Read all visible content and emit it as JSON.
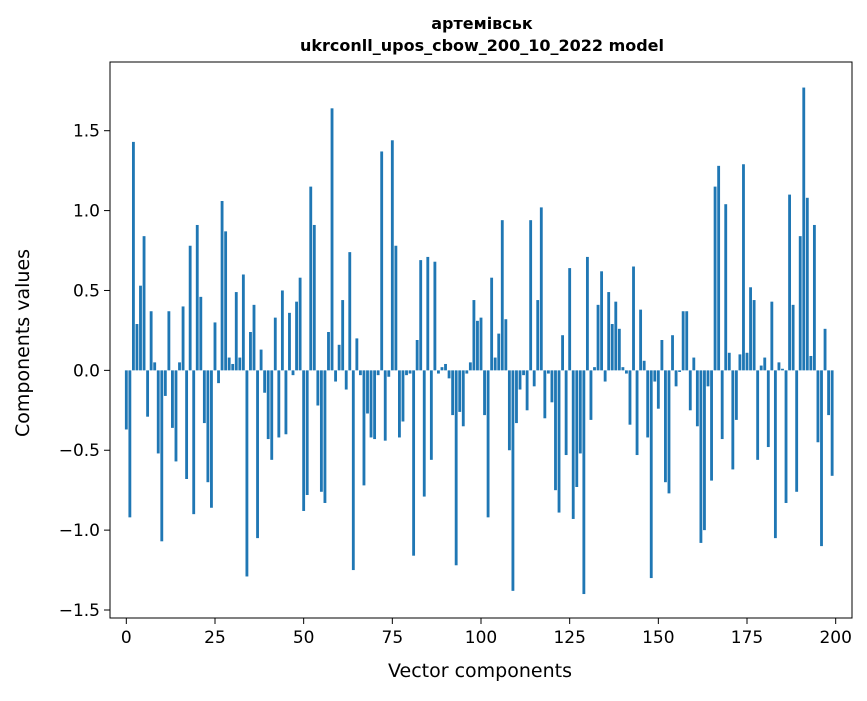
{
  "chart_data": {
    "type": "bar",
    "title": "артемівськ",
    "subtitle": "ukrconll_upos_cbow_200_10_2022 model",
    "xlabel": "Vector components",
    "ylabel": "Components values",
    "xlim": [
      -4.6,
      204.6
    ],
    "ylim": [
      -1.55,
      1.93
    ],
    "x_ticks": [
      0,
      25,
      50,
      75,
      100,
      125,
      150,
      175,
      200
    ],
    "x_tick_labels": [
      "0",
      "25",
      "50",
      "75",
      "100",
      "125",
      "150",
      "175",
      "200"
    ],
    "y_ticks": [
      -1.5,
      -1.0,
      -0.5,
      0.0,
      0.5,
      1.0,
      1.5
    ],
    "y_tick_labels": [
      "−1.5",
      "−1.0",
      "−0.5",
      "0.0",
      "0.5",
      "1.0",
      "1.5"
    ],
    "bar_color": "#1f77b4",
    "grid": false,
    "legend": "none",
    "x": [
      0,
      1,
      2,
      3,
      4,
      5,
      6,
      7,
      8,
      9,
      10,
      11,
      12,
      13,
      14,
      15,
      16,
      17,
      18,
      19,
      20,
      21,
      22,
      23,
      24,
      25,
      26,
      27,
      28,
      29,
      30,
      31,
      32,
      33,
      34,
      35,
      36,
      37,
      38,
      39,
      40,
      41,
      42,
      43,
      44,
      45,
      46,
      47,
      48,
      49,
      50,
      51,
      52,
      53,
      54,
      55,
      56,
      57,
      58,
      59,
      60,
      61,
      62,
      63,
      64,
      65,
      66,
      67,
      68,
      69,
      70,
      71,
      72,
      73,
      74,
      75,
      76,
      77,
      78,
      79,
      80,
      81,
      82,
      83,
      84,
      85,
      86,
      87,
      88,
      89,
      90,
      91,
      92,
      93,
      94,
      95,
      96,
      97,
      98,
      99,
      100,
      101,
      102,
      103,
      104,
      105,
      106,
      107,
      108,
      109,
      110,
      111,
      112,
      113,
      114,
      115,
      116,
      117,
      118,
      119,
      120,
      121,
      122,
      123,
      124,
      125,
      126,
      127,
      128,
      129,
      130,
      131,
      132,
      133,
      134,
      135,
      136,
      137,
      138,
      139,
      140,
      141,
      142,
      143,
      144,
      145,
      146,
      147,
      148,
      149,
      150,
      151,
      152,
      153,
      154,
      155,
      156,
      157,
      158,
      159,
      160,
      161,
      162,
      163,
      164,
      165,
      166,
      167,
      168,
      169,
      170,
      171,
      172,
      173,
      174,
      175,
      176,
      177,
      178,
      179,
      180,
      181,
      182,
      183,
      184,
      185,
      186,
      187,
      188,
      189,
      190,
      191,
      192,
      193,
      194,
      195,
      196,
      197,
      198,
      199
    ],
    "values": [
      -0.37,
      -0.92,
      1.43,
      0.29,
      0.53,
      0.84,
      -0.29,
      0.37,
      0.05,
      -0.52,
      -1.07,
      -0.16,
      0.37,
      -0.36,
      -0.57,
      0.05,
      0.4,
      -0.68,
      0.78,
      -0.9,
      0.91,
      0.46,
      -0.33,
      -0.7,
      -0.86,
      0.3,
      -0.08,
      1.06,
      0.87,
      0.08,
      0.04,
      0.49,
      0.08,
      0.6,
      -1.29,
      0.24,
      0.41,
      -1.05,
      0.13,
      -0.14,
      -0.43,
      -0.56,
      0.33,
      -0.42,
      0.5,
      -0.4,
      0.36,
      -0.03,
      0.43,
      0.58,
      -0.88,
      -0.78,
      1.15,
      0.91,
      -0.22,
      -0.76,
      -0.83,
      0.24,
      1.64,
      -0.07,
      0.16,
      0.44,
      -0.12,
      0.74,
      -1.25,
      0.2,
      -0.03,
      -0.72,
      -0.27,
      -0.42,
      -0.43,
      -0.03,
      1.37,
      -0.44,
      -0.04,
      1.44,
      0.78,
      -0.42,
      -0.32,
      -0.03,
      -0.02,
      -1.16,
      0.19,
      0.69,
      -0.79,
      0.71,
      -0.56,
      0.68,
      -0.02,
      0.02,
      0.04,
      -0.05,
      -0.28,
      -1.22,
      -0.26,
      -0.35,
      -0.02,
      0.05,
      0.44,
      0.31,
      0.33,
      -0.28,
      -0.92,
      0.58,
      0.08,
      0.23,
      0.94,
      0.32,
      -0.5,
      -1.38,
      -0.33,
      -0.12,
      -0.03,
      -0.25,
      0.94,
      -0.1,
      0.44,
      1.02,
      -0.3,
      -0.02,
      -0.2,
      -0.75,
      -0.89,
      0.22,
      -0.53,
      0.64,
      -0.93,
      -0.73,
      -0.52,
      -1.4,
      0.71,
      -0.31,
      0.02,
      0.41,
      0.62,
      -0.07,
      0.49,
      0.29,
      0.43,
      0.26,
      0.02,
      -0.02,
      -0.34,
      0.65,
      -0.53,
      0.38,
      0.06,
      -0.42,
      -1.3,
      -0.07,
      -0.24,
      0.19,
      -0.7,
      -0.77,
      0.22,
      -0.1,
      -0.01,
      0.37,
      0.37,
      -0.25,
      0.08,
      -0.35,
      -1.08,
      -1.0,
      -0.1,
      -0.69,
      1.15,
      1.28,
      -0.43,
      1.04,
      0.11,
      -0.62,
      -0.31,
      0.1,
      1.29,
      0.11,
      0.52,
      0.44,
      -0.56,
      0.03,
      0.08,
      -0.48,
      0.43,
      -1.05,
      0.05,
      0.01,
      -0.83,
      1.1,
      0.41,
      -0.76,
      0.84,
      1.77,
      1.08,
      0.09,
      0.91,
      -0.45,
      -1.1,
      0.26,
      -0.28,
      -0.66
    ]
  }
}
